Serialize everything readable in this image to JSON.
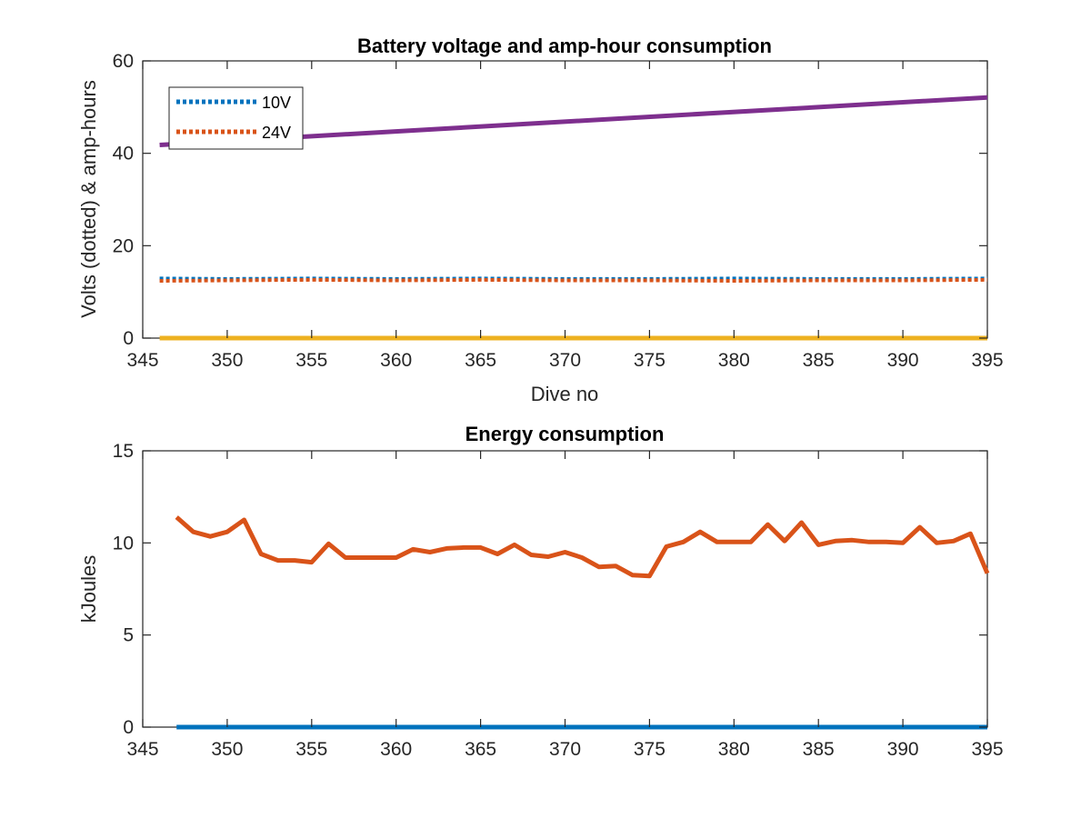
{
  "chart_data": [
    {
      "type": "line",
      "title": "Battery voltage and amp-hour consumption",
      "xlabel": "Dive no",
      "ylabel": "Volts (dotted) & amp-hours",
      "xlim": [
        345,
        395
      ],
      "ylim": [
        0,
        60
      ],
      "xticks": [
        "345",
        "350",
        "355",
        "360",
        "365",
        "370",
        "375",
        "380",
        "385",
        "390",
        "395"
      ],
      "yticks": [
        "0",
        "20",
        "40",
        "60"
      ],
      "grid": false,
      "legend": {
        "placement": "top-left"
      },
      "series": [
        {
          "name": "10V",
          "color": "#0072BD",
          "style": "dotted",
          "x": [
            346,
            350,
            355,
            360,
            365,
            370,
            375,
            380,
            385,
            390,
            395
          ],
          "y": [
            12.9,
            12.8,
            12.9,
            12.8,
            12.9,
            12.8,
            12.8,
            12.9,
            12.8,
            12.8,
            12.9
          ]
        },
        {
          "name": "24V",
          "color": "#D95319",
          "style": "dotted",
          "x": [
            346,
            350,
            355,
            360,
            365,
            370,
            375,
            380,
            385,
            390,
            395
          ],
          "y": [
            12.4,
            12.5,
            12.6,
            12.5,
            12.6,
            12.5,
            12.5,
            12.4,
            12.5,
            12.5,
            12.6
          ]
        },
        {
          "color": "#EDB120",
          "style": "solid",
          "x": [
            346,
            395
          ],
          "y": [
            0,
            0
          ]
        },
        {
          "color": "#7E2F8E",
          "style": "solid",
          "x": [
            346,
            395
          ],
          "y": [
            41.8,
            52.1
          ]
        }
      ]
    },
    {
      "type": "line",
      "title": "Energy consumption",
      "xlabel": "",
      "ylabel": "kJoules",
      "xlim": [
        345,
        395
      ],
      "ylim": [
        0,
        15
      ],
      "xticks": [
        "345",
        "350",
        "355",
        "360",
        "365",
        "370",
        "375",
        "380",
        "385",
        "390",
        "395"
      ],
      "yticks": [
        "0",
        "5",
        "10",
        "15"
      ],
      "grid": false,
      "series": [
        {
          "color": "#0072BD",
          "style": "solid",
          "x": [
            347,
            395
          ],
          "y": [
            0,
            0
          ]
        },
        {
          "color": "#D95319",
          "style": "solid",
          "x": [
            347,
            348,
            349,
            350,
            351,
            352,
            353,
            354,
            355,
            356,
            357,
            358,
            359,
            360,
            361,
            362,
            363,
            364,
            365,
            366,
            367,
            368,
            369,
            370,
            371,
            372,
            373,
            374,
            375,
            376,
            377,
            378,
            379,
            380,
            381,
            382,
            383,
            384,
            385,
            386,
            387,
            388,
            389,
            390,
            391,
            392,
            393,
            394,
            395
          ],
          "y": [
            11.4,
            10.6,
            10.35,
            10.6,
            11.25,
            9.4,
            9.05,
            9.05,
            8.95,
            9.95,
            9.2,
            9.2,
            9.2,
            9.2,
            9.65,
            9.5,
            9.7,
            9.75,
            9.75,
            9.4,
            9.9,
            9.35,
            9.25,
            9.5,
            9.2,
            8.7,
            8.75,
            8.25,
            8.2,
            9.8,
            10.05,
            10.6,
            10.05,
            10.05,
            10.05,
            11.0,
            10.1,
            11.1,
            9.9,
            10.1,
            10.15,
            10.05,
            10.05,
            10.0,
            10.85,
            10.0,
            10.1,
            10.5,
            8.35
          ]
        }
      ]
    }
  ]
}
